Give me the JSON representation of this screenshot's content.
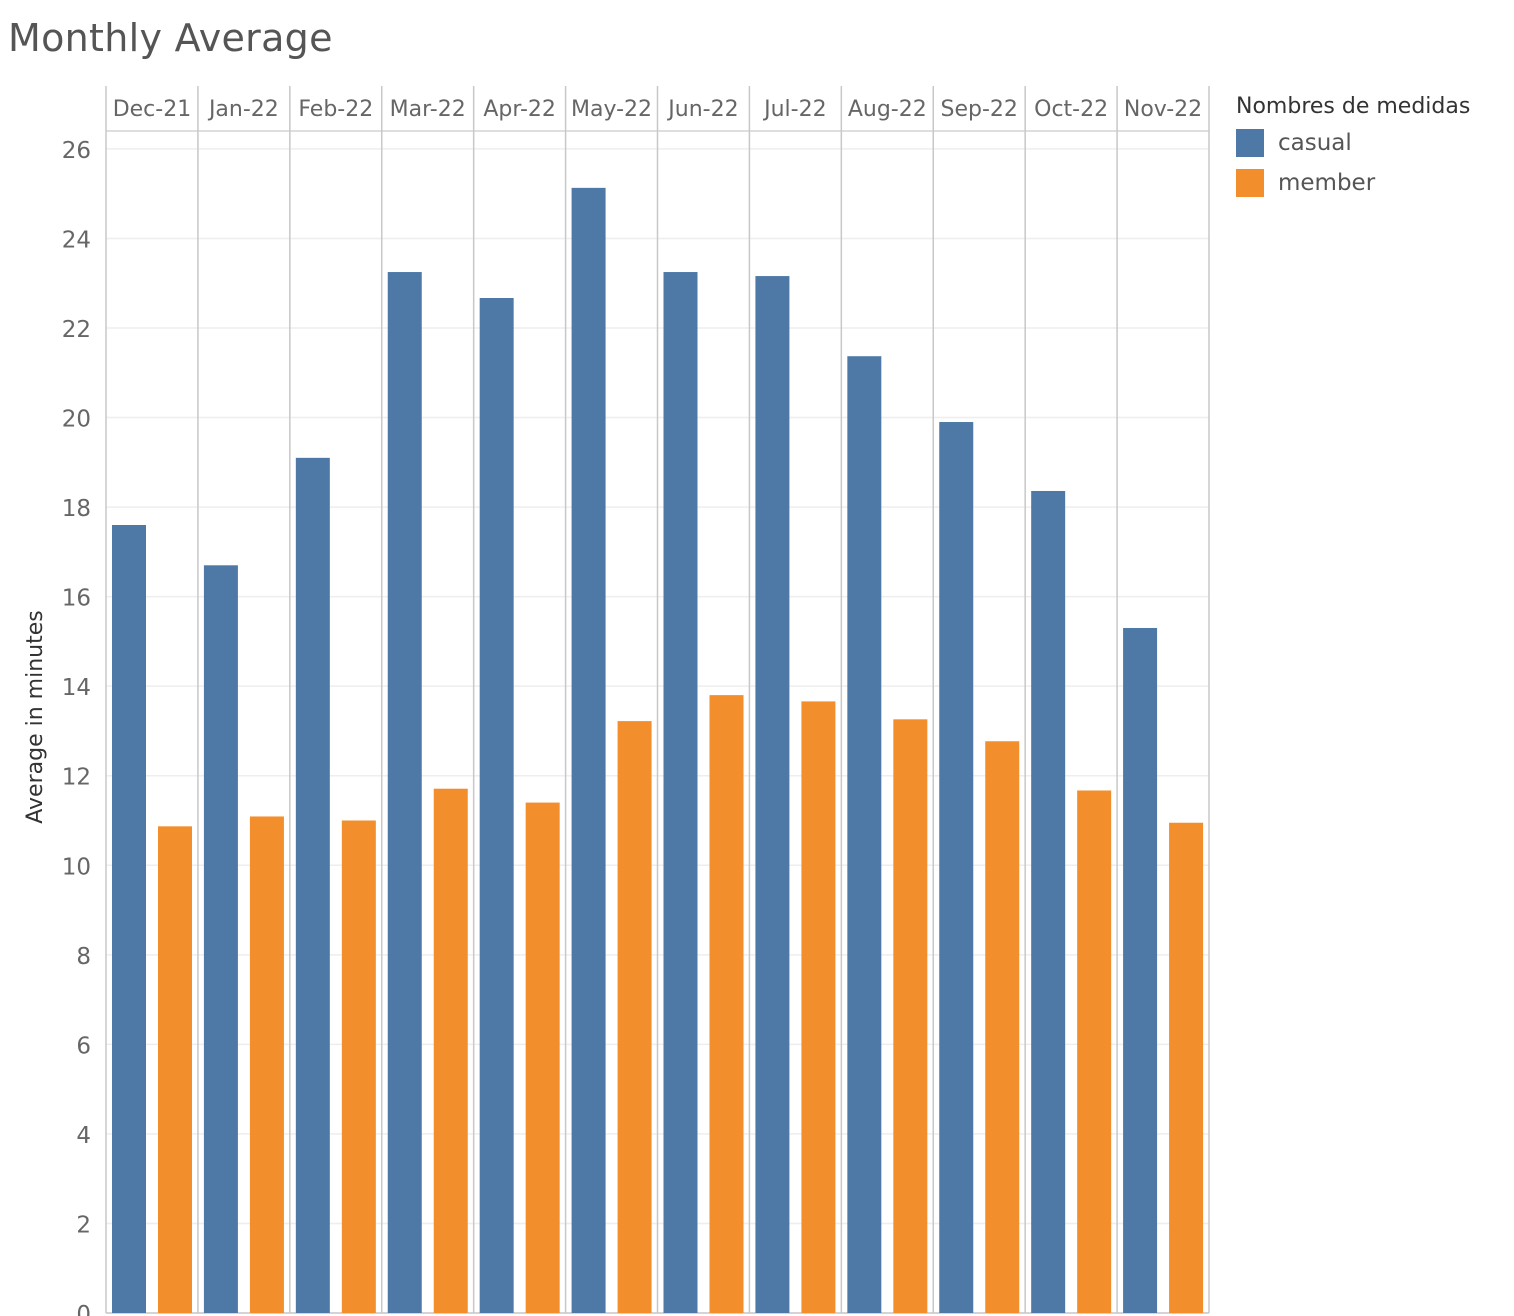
{
  "chart_data": {
    "type": "bar",
    "title": "Monthly Average",
    "xlabel": "",
    "ylabel": "Average in minutes",
    "categories": [
      "Dec-21",
      "Jan-22",
      "Feb-22",
      "Mar-22",
      "Apr-22",
      "May-22",
      "Jun-22",
      "Jul-22",
      "Aug-22",
      "Sep-22",
      "Oct-22",
      "Nov-22"
    ],
    "series": [
      {
        "name": "casual",
        "color": "#4E79A7",
        "values": [
          17.6,
          16.7,
          19.1,
          23.25,
          22.67,
          25.13,
          23.25,
          23.16,
          21.37,
          19.9,
          18.36,
          15.3
        ]
      },
      {
        "name": "member",
        "color": "#F28E2B",
        "values": [
          10.87,
          11.09,
          11.0,
          11.71,
          11.4,
          13.22,
          13.8,
          13.66,
          13.26,
          12.77,
          11.67,
          10.95
        ]
      }
    ],
    "ylim": [
      0,
      26.4
    ],
    "yticks": [
      "0",
      "2",
      "4",
      "6",
      "8",
      "10",
      "12",
      "14",
      "16",
      "18",
      "20",
      "22",
      "24",
      "26"
    ],
    "grid": true,
    "legend": {
      "title": "Nombres de medidas",
      "position": "top-right"
    }
  }
}
